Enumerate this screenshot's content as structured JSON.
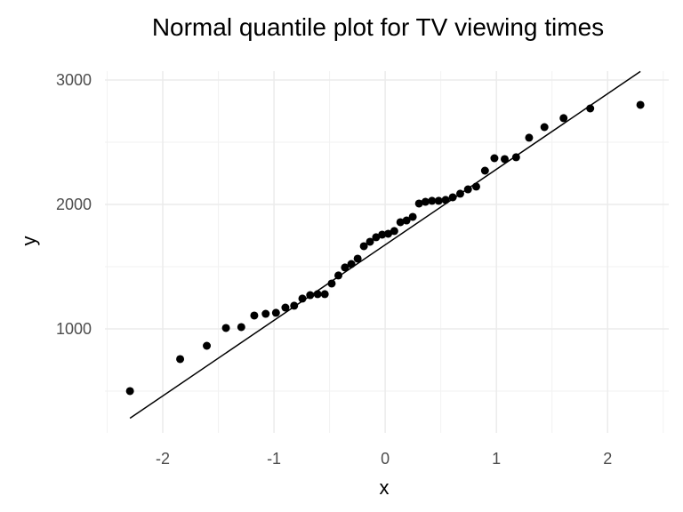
{
  "chart_data": {
    "type": "scatter",
    "title": "Normal quantile plot for TV viewing times",
    "xlabel": "x",
    "ylabel": "y",
    "xlim": [
      -2.52,
      2.55
    ],
    "ylim": [
      164,
      3071
    ],
    "x_ticks": [
      -2,
      -1,
      0,
      1,
      2
    ],
    "y_ticks": [
      1000,
      2000,
      3000
    ],
    "grid": true,
    "point_color": "#000000",
    "reference_line": {
      "intercept": 1675,
      "slope": 607,
      "color": "#000000"
    },
    "y": [
      500,
      757,
      864,
      1007,
      1014,
      1107,
      1121,
      1129,
      1171,
      1186,
      1243,
      1271,
      1279,
      1279,
      1364,
      1429,
      1493,
      1521,
      1564,
      1664,
      1700,
      1736,
      1757,
      1764,
      1786,
      1857,
      1871,
      1900,
      2007,
      2021,
      2029,
      2029,
      2036,
      2057,
      2086,
      2121,
      2143,
      2271,
      2371,
      2364,
      2379,
      2536,
      2621,
      2693,
      2771,
      2800
    ]
  }
}
